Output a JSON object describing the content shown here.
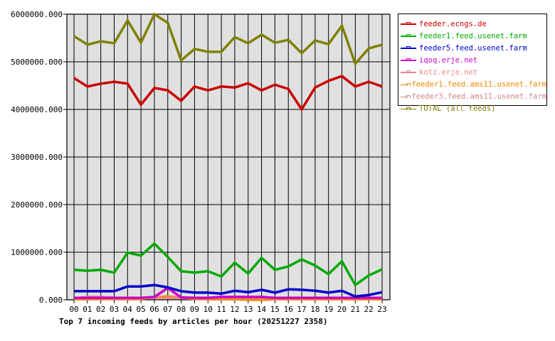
{
  "chart_data": {
    "type": "line",
    "title": "Top 7 incoming feeds by articles per hour (20251227 2358)",
    "xlabel": "",
    "ylabel": "",
    "ylim": [
      0,
      6000000
    ],
    "grid": true,
    "legend_position": "right",
    "y_ticks": [
      "0.000",
      "1000000.000",
      "2000000.000",
      "3000000.000",
      "4000000.000",
      "5000000.000",
      "6000000.000"
    ],
    "y_tick_values": [
      0,
      1000000,
      2000000,
      3000000,
      4000000,
      5000000,
      6000000
    ],
    "categories": [
      "00",
      "01",
      "02",
      "03",
      "04",
      "05",
      "06",
      "07",
      "08",
      "09",
      "10",
      "11",
      "12",
      "13",
      "14",
      "15",
      "16",
      "17",
      "18",
      "19",
      "20",
      "21",
      "22",
      "23"
    ],
    "series": [
      {
        "name": "feeder.ecngs.de",
        "color": "#cc0000",
        "values": [
          4660000,
          4480000,
          4540000,
          4580000,
          4540000,
          4100000,
          4450000,
          4400000,
          4180000,
          4480000,
          4400000,
          4480000,
          4460000,
          4550000,
          4400000,
          4520000,
          4430000,
          4000000,
          4460000,
          4600000,
          4700000,
          4480000,
          4580000,
          4480000
        ]
      },
      {
        "name": "feeder1.feed.usenet.farm",
        "color": "#00aa00",
        "values": [
          630000,
          610000,
          630000,
          570000,
          990000,
          930000,
          1180000,
          900000,
          600000,
          570000,
          600000,
          490000,
          780000,
          550000,
          880000,
          630000,
          700000,
          850000,
          720000,
          540000,
          810000,
          310000,
          510000,
          640000
        ]
      },
      {
        "name": "feeder5.feed.usenet.farm",
        "color": "#0000cc",
        "values": [
          180000,
          180000,
          180000,
          180000,
          280000,
          280000,
          310000,
          260000,
          180000,
          150000,
          150000,
          130000,
          190000,
          160000,
          210000,
          150000,
          220000,
          210000,
          190000,
          150000,
          190000,
          70000,
          100000,
          160000
        ]
      },
      {
        "name": "iqoq.erje.net",
        "color": "#cc00cc",
        "values": [
          40000,
          40000,
          40000,
          40000,
          40000,
          40000,
          60000,
          250000,
          50000,
          40000,
          40000,
          60000,
          60000,
          60000,
          60000,
          40000,
          40000,
          40000,
          40000,
          40000,
          40000,
          40000,
          40000,
          40000
        ]
      },
      {
        "name": "kotz.erje.net",
        "color": "#ee8888",
        "values": [
          30000,
          60000,
          60000,
          40000,
          40000,
          40000,
          40000,
          40000,
          40000,
          40000,
          40000,
          50000,
          50000,
          50000,
          50000,
          40000,
          40000,
          40000,
          40000,
          40000,
          40000,
          40000,
          40000,
          40000
        ]
      },
      {
        "name": "feeder1.feed.ams11.usenet.farm",
        "color": "#ee8800",
        "values": [
          10000,
          10000,
          20000,
          20000,
          10000,
          20000,
          50000,
          70000,
          40000,
          20000,
          10000,
          10000,
          10000,
          0,
          0,
          10000,
          10000,
          10000,
          10000,
          10000,
          10000,
          10000,
          10000,
          10000
        ]
      },
      {
        "name": "feeder3.feed.ams11.usenet.farm",
        "color": "#cc8888",
        "values": [
          40000,
          40000,
          40000,
          40000,
          40000,
          40000,
          40000,
          40000,
          40000,
          40000,
          40000,
          40000,
          40000,
          40000,
          40000,
          40000,
          40000,
          40000,
          40000,
          40000,
          40000,
          40000,
          40000,
          40000
        ]
      },
      {
        "name": "TOTAL (all feeds)",
        "color": "#808000",
        "values": [
          5540000,
          5360000,
          5430000,
          5390000,
          5870000,
          5400000,
          6000000,
          5820000,
          5030000,
          5270000,
          5210000,
          5210000,
          5520000,
          5390000,
          5570000,
          5400000,
          5460000,
          5180000,
          5450000,
          5370000,
          5760000,
          4960000,
          5280000,
          5360000
        ]
      }
    ]
  },
  "legend": {
    "items": [
      {
        "label": "feeder.ecngs.de",
        "color": "#cc0000"
      },
      {
        "label": "feeder1.feed.usenet.farm",
        "color": "#00aa00"
      },
      {
        "label": "feeder5.feed.usenet.farm",
        "color": "#0000cc"
      },
      {
        "label": "iqoq.erje.net",
        "color": "#cc00cc"
      },
      {
        "label": "kotz.erje.net",
        "color": "#ee8888"
      },
      {
        "label": "feeder1.feed.ams11.usenet.farm",
        "color": "#ee8800"
      },
      {
        "label": "feeder3.feed.ams11.usenet.farm",
        "color": "#cc8888"
      },
      {
        "label": "TOTAL (all feeds)",
        "color": "#808000"
      }
    ]
  },
  "colors": {
    "plot_background": "#e0e0e0",
    "grid": "#000000",
    "page_background": "#ffffff"
  }
}
